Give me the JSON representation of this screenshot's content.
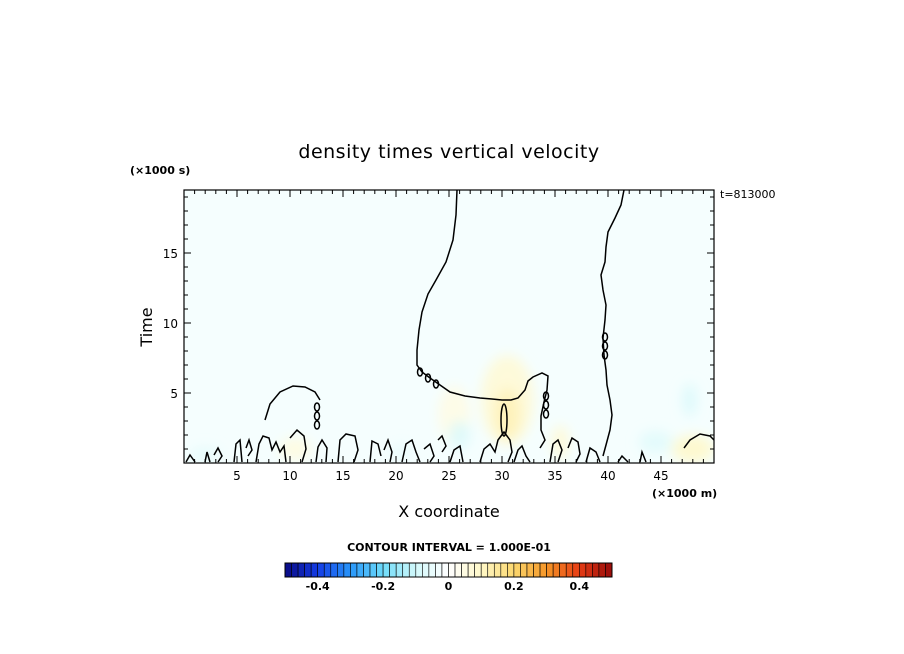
{
  "chart_data": {
    "type": "heatmap",
    "title": "density times vertical velocity",
    "xlabel": "X coordinate",
    "ylabel": "Time",
    "x_unit": "(×1000 m)",
    "y_unit": "(×1000 s)",
    "time_stamp": "t=813000",
    "xlim": [
      0,
      50
    ],
    "ylim": [
      0,
      19.5
    ],
    "x_ticks": [
      "5",
      "10",
      "15",
      "20",
      "25",
      "30",
      "35",
      "40",
      "45"
    ],
    "y_ticks": [
      "5",
      "10",
      "15"
    ],
    "contour_interval_text": "CONTOUR INTERVAL = 1.000E-01",
    "colorbar": {
      "min": -0.5,
      "max": 0.5,
      "ticks": [
        "-0.4",
        "-0.2",
        "0",
        "0.2",
        "0.4"
      ],
      "tick_values": [
        -0.4,
        -0.2,
        0,
        0.2,
        0.4
      ]
    },
    "field_features": [
      {
        "x": 30.5,
        "y": 4.5,
        "rx": 2.5,
        "ry": 3.2,
        "value": 0.08
      },
      {
        "x": 30.5,
        "y": 3.5,
        "rx": 1.2,
        "ry": 1.8,
        "value": 0.12
      },
      {
        "x": 25.5,
        "y": 3.5,
        "rx": 1.5,
        "ry": 2.0,
        "value": 0.05
      },
      {
        "x": 48.0,
        "y": 1.0,
        "rx": 2.0,
        "ry": 1.0,
        "value": 0.1
      },
      {
        "x": 47.7,
        "y": 4.5,
        "rx": 0.7,
        "ry": 1.2,
        "value": -0.08
      },
      {
        "x": 44.5,
        "y": 1.5,
        "rx": 1.6,
        "ry": 0.8,
        "value": -0.07
      },
      {
        "x": 26.0,
        "y": 2.0,
        "rx": 1.0,
        "ry": 1.0,
        "value": -0.08
      },
      {
        "x": 10.5,
        "y": 1.0,
        "rx": 1.5,
        "ry": 0.8,
        "value": 0.06
      },
      {
        "x": 2.0,
        "y": 0.6,
        "rx": 1.5,
        "ry": 0.5,
        "value": -0.06
      },
      {
        "x": 35.5,
        "y": 1.5,
        "rx": 0.8,
        "ry": 1.2,
        "value": 0.08
      },
      {
        "x": 20.5,
        "y": 0.8,
        "rx": 1.0,
        "ry": 0.6,
        "value": -0.05
      }
    ]
  }
}
